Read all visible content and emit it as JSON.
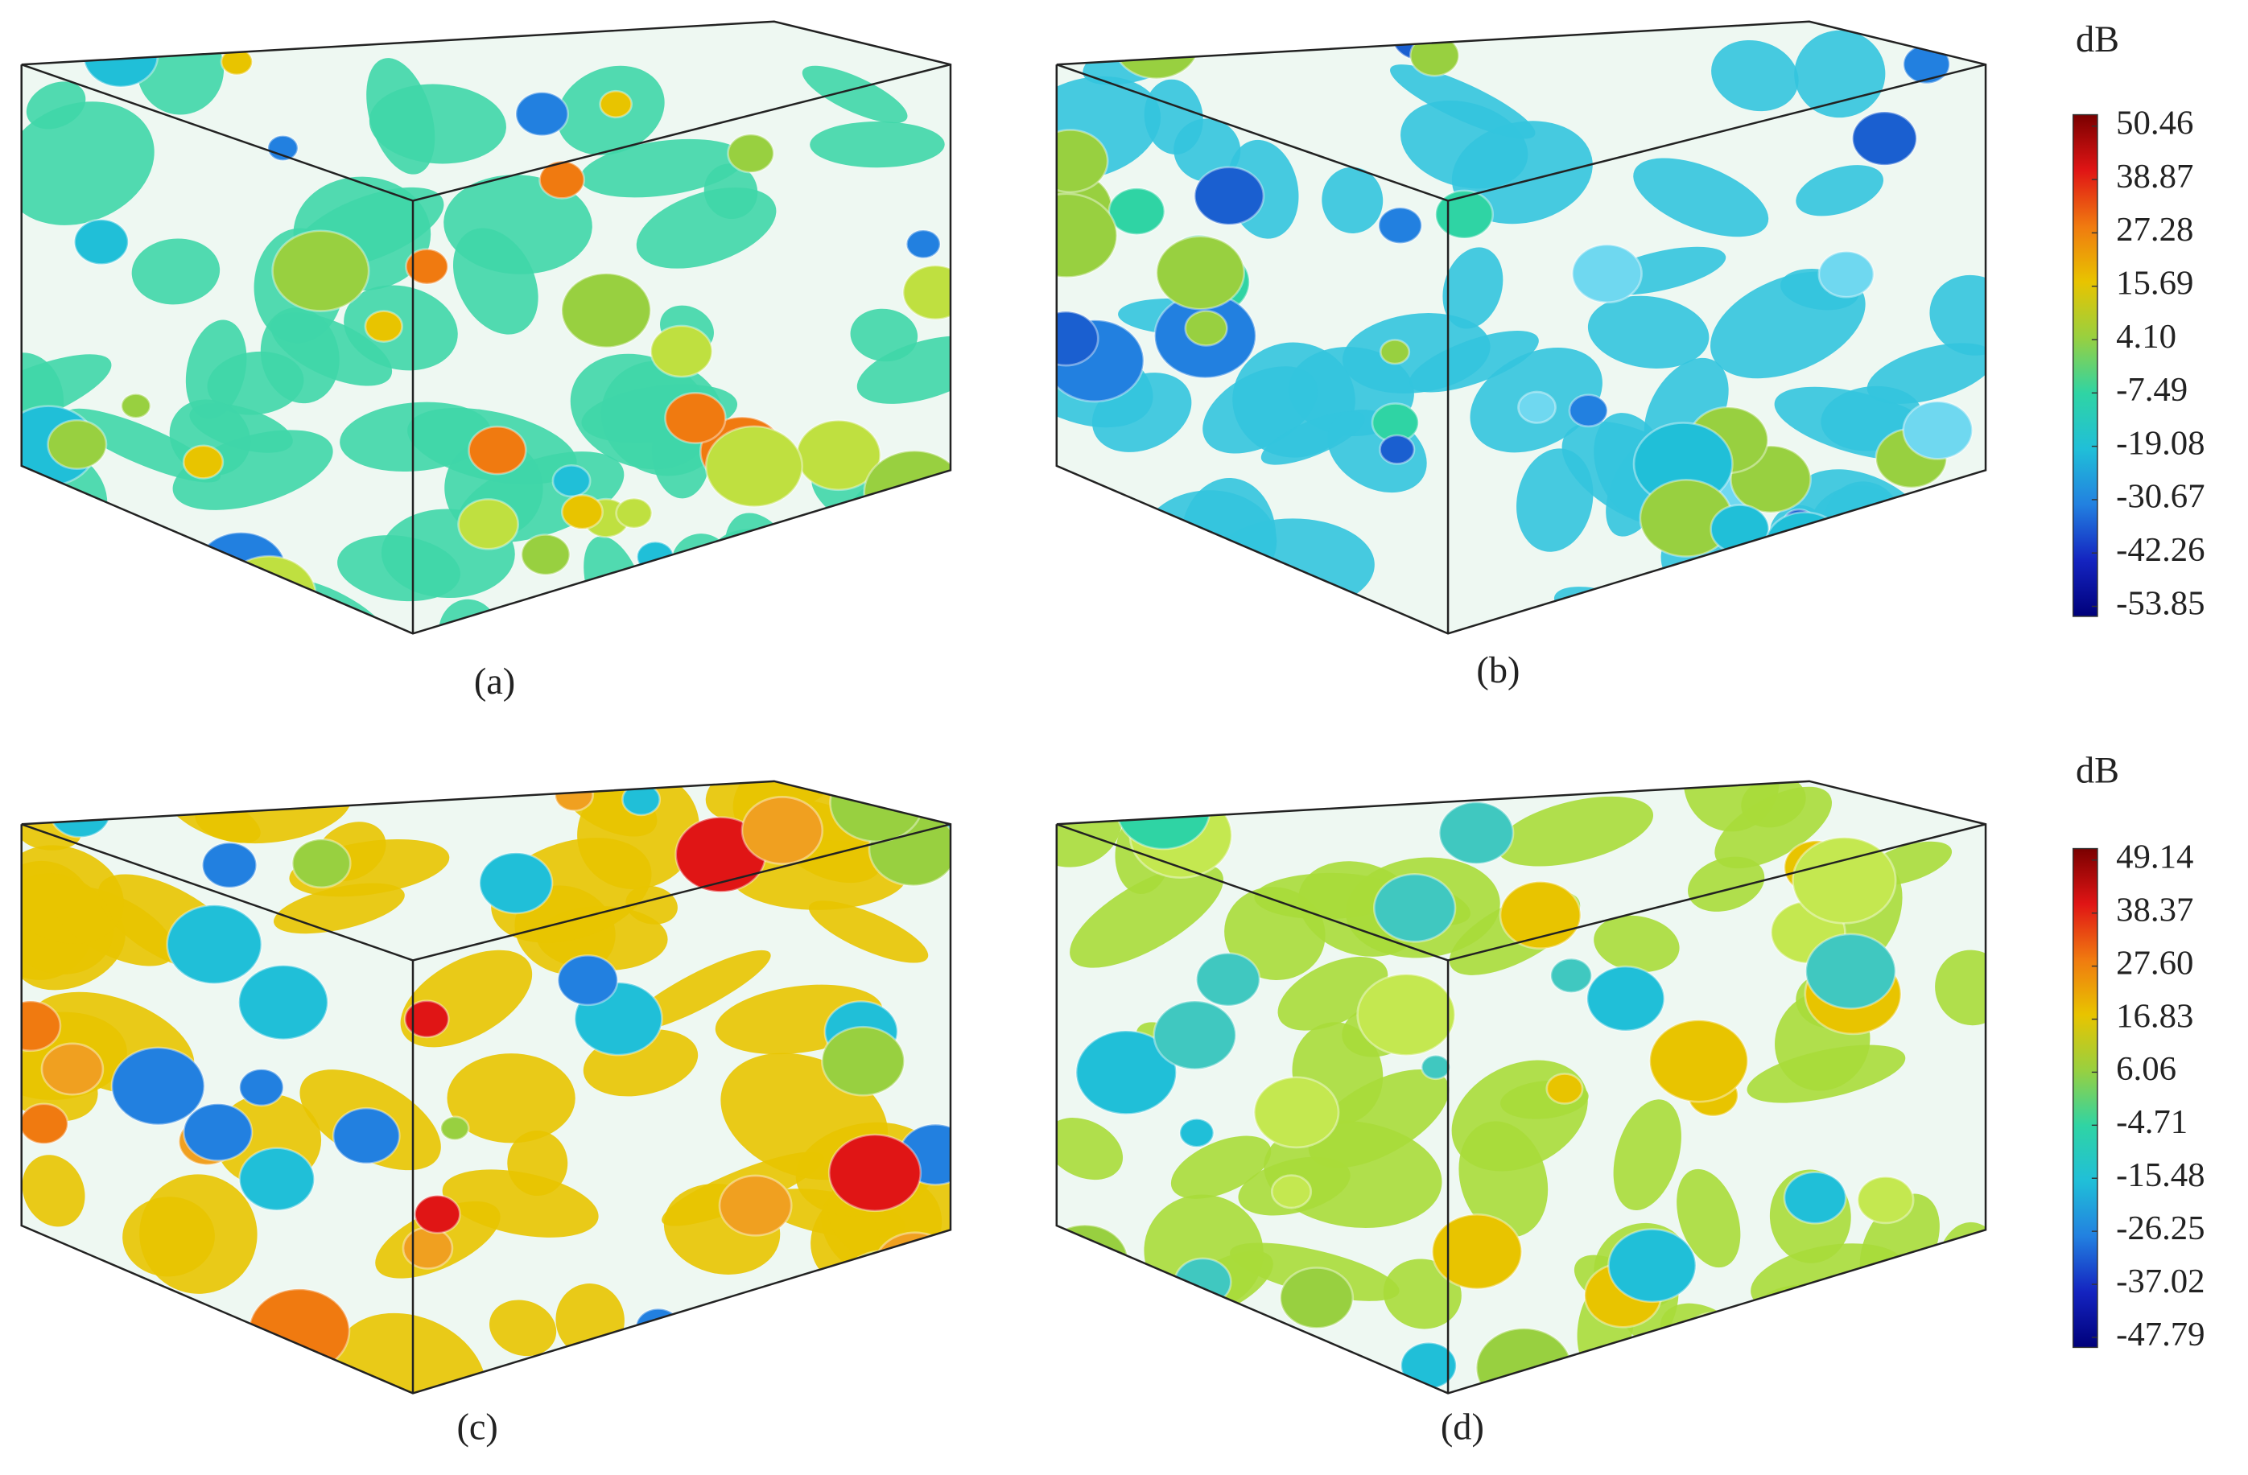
{
  "panels": [
    {
      "label": "(a)"
    },
    {
      "label": "(b)"
    },
    {
      "label": "(c)"
    },
    {
      "label": "(d)"
    }
  ],
  "colorbars": [
    {
      "unit": "dB",
      "ticks": [
        50.46,
        38.87,
        27.28,
        15.69,
        {
          "value": 4.1,
          "label": "4.10"
        },
        -7.49,
        -19.08,
        -30.67,
        -42.26,
        -53.85
      ],
      "colors": [
        "#7a0000",
        "#e01515",
        "#f07a10",
        "#e8c400",
        "#98d040",
        "#2fd4a4",
        "#20bfd8",
        "#2280e0",
        "#1424c0",
        "#00007a"
      ]
    },
    {
      "unit": "dB",
      "ticks": [
        49.14,
        38.37,
        {
          "value": 27.6,
          "label": "27.60"
        },
        16.83,
        6.06,
        -4.71,
        -15.48,
        -26.25,
        -37.02,
        -47.79
      ],
      "colors": [
        "#7a0000",
        "#e01515",
        "#f07a10",
        "#e8c400",
        "#98d040",
        "#2fd4a4",
        "#20bfd8",
        "#2280e0",
        "#1424c0",
        "#00007a"
      ]
    }
  ]
}
